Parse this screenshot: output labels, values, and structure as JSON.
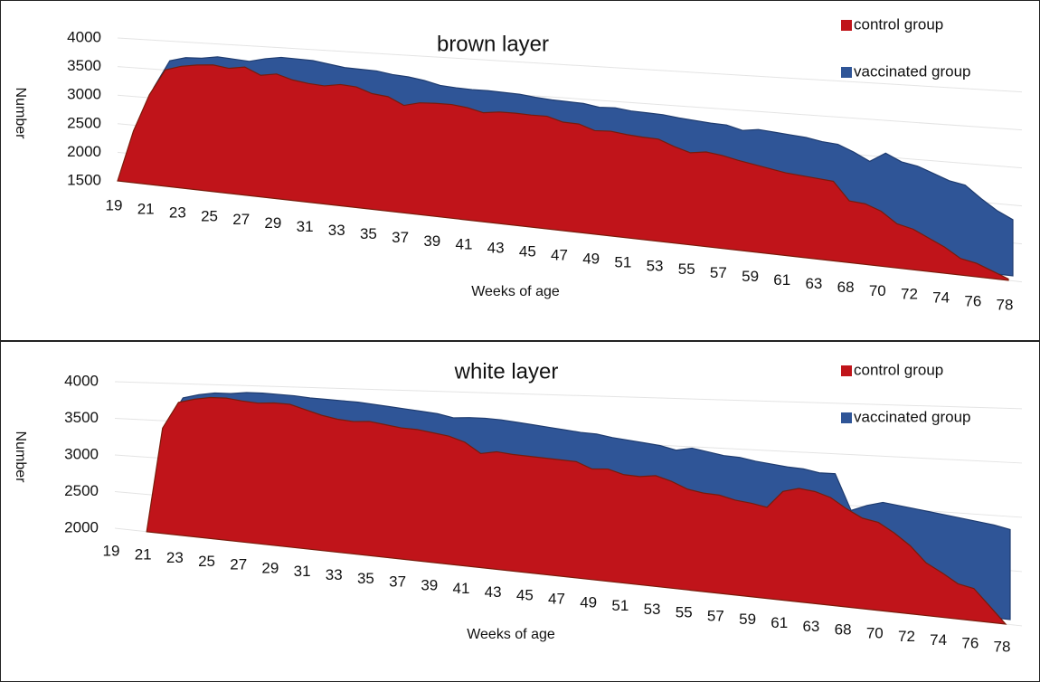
{
  "chart_data": [
    {
      "type": "area",
      "title": "brown layer",
      "x_label": "Weeks of age",
      "y_label": "Number",
      "categories": [
        19,
        null,
        21,
        null,
        23,
        null,
        25,
        null,
        27,
        null,
        29,
        null,
        31,
        null,
        33,
        null,
        35,
        null,
        37,
        null,
        39,
        null,
        41,
        null,
        43,
        null,
        45,
        null,
        47,
        null,
        49,
        null,
        51,
        null,
        53,
        null,
        55,
        null,
        57,
        null,
        59,
        null,
        61,
        null,
        63,
        null,
        68,
        null,
        70,
        null,
        72,
        null,
        74,
        null,
        76,
        null,
        78
      ],
      "series": [
        {
          "name": "vaccinated group",
          "color": "#2f5597",
          "values": [
            1500,
            2400,
            3100,
            3580,
            3650,
            3660,
            3700,
            3680,
            3660,
            3720,
            3760,
            3750,
            3740,
            3700,
            3660,
            3650,
            3640,
            3600,
            3580,
            3540,
            3480,
            3460,
            3450,
            3450,
            3440,
            3430,
            3400,
            3380,
            3370,
            3360,
            3320,
            3330,
            3300,
            3290,
            3280,
            3250,
            3230,
            3210,
            3200,
            3140,
            3170,
            3150,
            3130,
            3110,
            3070,
            3050,
            2960,
            2850,
            2980,
            2880,
            2840,
            2760,
            2680,
            2640,
            2480,
            2340,
            2240
          ]
        },
        {
          "name": "control group",
          "color": "#c0141a",
          "values": [
            1500,
            2400,
            3050,
            3500,
            3580,
            3620,
            3640,
            3600,
            3640,
            3520,
            3560,
            3480,
            3440,
            3420,
            3460,
            3440,
            3350,
            3320,
            3200,
            3260,
            3270,
            3270,
            3240,
            3180,
            3210,
            3210,
            3200,
            3200,
            3130,
            3120,
            3040,
            3050,
            3020,
            3000,
            2990,
            2900,
            2830,
            2860,
            2830,
            2780,
            2740,
            2700,
            2660,
            2640,
            2620,
            2600,
            2350,
            2330,
            2250,
            2100,
            2050,
            1950,
            1850,
            1720,
            1680,
            1600,
            1520
          ]
        }
      ],
      "ylim": [
        1500,
        4000
      ],
      "yticks": [
        1500,
        2000,
        2500,
        3000,
        3500,
        4000
      ],
      "grid": true,
      "legend": "upper right"
    },
    {
      "type": "area",
      "title": "white layer",
      "x_label": "Weeks of age",
      "y_label": "Number",
      "categories": [
        19,
        null,
        21,
        null,
        23,
        null,
        25,
        null,
        27,
        null,
        29,
        null,
        31,
        null,
        33,
        null,
        35,
        null,
        37,
        null,
        39,
        null,
        41,
        null,
        43,
        null,
        45,
        null,
        47,
        null,
        49,
        null,
        51,
        null,
        53,
        null,
        55,
        null,
        57,
        null,
        59,
        null,
        61,
        null,
        63,
        null,
        68,
        null,
        70,
        null,
        72,
        null,
        74,
        null,
        76,
        null,
        78
      ],
      "series": [
        {
          "name": "vaccinated group",
          "color": "#2f5597",
          "values": [
            null,
            null,
            2000,
            3400,
            3750,
            3800,
            3830,
            3830,
            3850,
            3850,
            3840,
            3830,
            3810,
            3800,
            3790,
            3780,
            3760,
            3740,
            3720,
            3700,
            3680,
            3640,
            3650,
            3650,
            3640,
            3620,
            3600,
            3580,
            3560,
            3540,
            3530,
            3500,
            3480,
            3460,
            3440,
            3400,
            3430,
            3400,
            3370,
            3360,
            3330,
            3310,
            3290,
            3280,
            3250,
            3250,
            2900,
            2960,
            3000,
            2980,
            2960,
            2940,
            2920,
            2900,
            2880,
            2860,
            2830
          ]
        },
        {
          "name": "control group",
          "color": "#c0141a",
          "values": [
            null,
            null,
            2000,
            3400,
            3750,
            3800,
            3830,
            3830,
            3800,
            3780,
            3790,
            3780,
            3720,
            3660,
            3620,
            3600,
            3610,
            3580,
            3550,
            3540,
            3510,
            3480,
            3420,
            3300,
            3330,
            3310,
            3300,
            3290,
            3280,
            3270,
            3200,
            3210,
            3160,
            3150,
            3170,
            3120,
            3050,
            3020,
            3010,
            2970,
            2950,
            2920,
            3090,
            3130,
            3110,
            3060,
            2960,
            2880,
            2850,
            2760,
            2650,
            2500,
            2420,
            2330,
            2300,
            2150,
            2000
          ]
        }
      ],
      "ylim": [
        2000,
        4000
      ],
      "yticks": [
        2000,
        2500,
        3000,
        3500,
        4000
      ],
      "grid": true,
      "legend": "upper right"
    }
  ]
}
